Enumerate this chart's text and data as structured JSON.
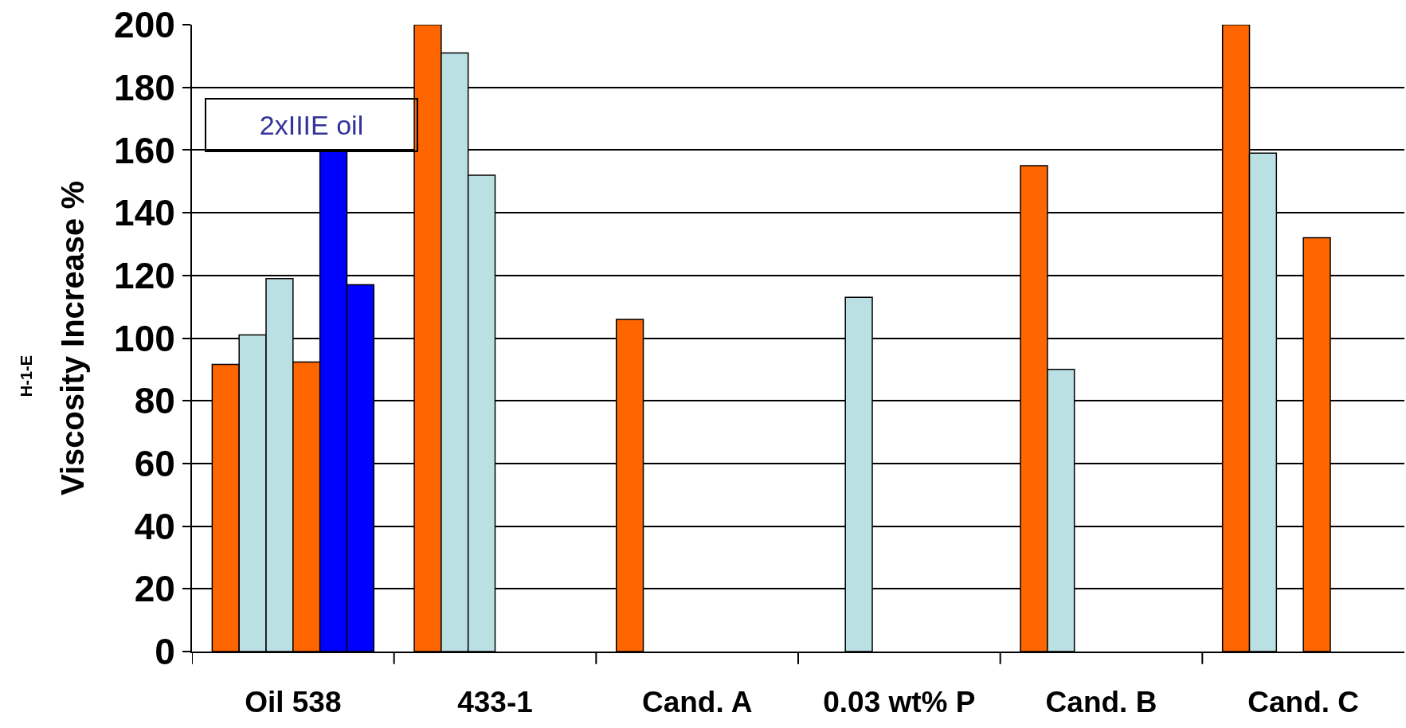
{
  "chart_data": {
    "type": "bar",
    "ylabel": "Viscosity Increase %",
    "categories": [
      "Oil 538",
      "433-1",
      "Cand. A",
      "0.03 wt% P",
      "Cand. B",
      "Cand. C"
    ],
    "series": [
      {
        "color": "#ff6600",
        "values": [
          91.6,
          200,
          106,
          null,
          155,
          200
        ]
      },
      {
        "color": "#bbe0e3",
        "values": [
          101,
          191,
          null,
          113,
          90,
          159
        ]
      },
      {
        "color": "#bbe0e3",
        "values": [
          119,
          152,
          null,
          null,
          null,
          null
        ]
      },
      {
        "color": "#ff6600",
        "values": [
          92.4,
          null,
          null,
          null,
          null,
          132
        ]
      },
      {
        "color": "#0000ff",
        "values": [
          160,
          null,
          null,
          null,
          null,
          null
        ]
      },
      {
        "color": "#0000ff",
        "values": [
          117,
          null,
          null,
          null,
          null,
          null
        ]
      }
    ],
    "ylim": [
      0,
      200
    ],
    "yticks": [
      0,
      20,
      40,
      60,
      80,
      100,
      120,
      140,
      160,
      180,
      200
    ],
    "grid": "y",
    "annotations": [
      "2xIIIE oil",
      "H-1-E"
    ]
  }
}
